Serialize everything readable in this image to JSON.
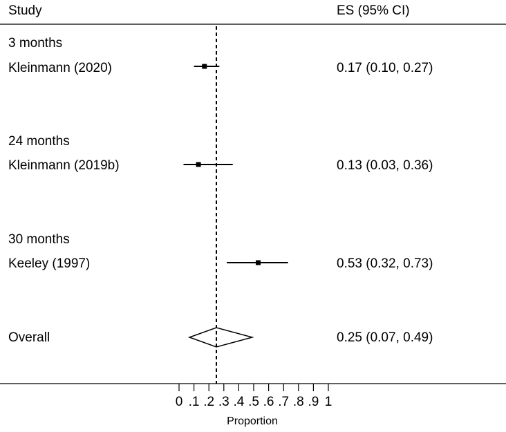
{
  "chart_data": {
    "type": "forest",
    "header": {
      "study": "Study",
      "es": "ES (95% CI)"
    },
    "groups": [
      {
        "label": "3 months",
        "studies": [
          {
            "name": "Kleinmann (2020)",
            "es": 0.17,
            "lo": 0.1,
            "hi": 0.27,
            "text": "0.17 (0.10, 0.27)"
          }
        ]
      },
      {
        "label": "24 months",
        "studies": [
          {
            "name": "Kleinmann (2019b)",
            "es": 0.13,
            "lo": 0.03,
            "hi": 0.36,
            "text": "0.13 (0.03, 0.36)"
          }
        ]
      },
      {
        "label": "30 months",
        "studies": [
          {
            "name": "Keeley (1997)",
            "es": 0.53,
            "lo": 0.32,
            "hi": 0.73,
            "text": "0.53 (0.32, 0.73)"
          }
        ]
      }
    ],
    "overall": {
      "label": "Overall",
      "es": 0.25,
      "lo": 0.07,
      "hi": 0.49,
      "text": "0.25 (0.07, 0.49)"
    },
    "reference_line": 0.25,
    "x": {
      "label": "Proportion",
      "ticks": [
        "0",
        ".1",
        ".2",
        ".3",
        ".4",
        ".5",
        ".6",
        ".7",
        ".8",
        ".9",
        "1"
      ],
      "range": [
        0,
        1
      ]
    }
  }
}
